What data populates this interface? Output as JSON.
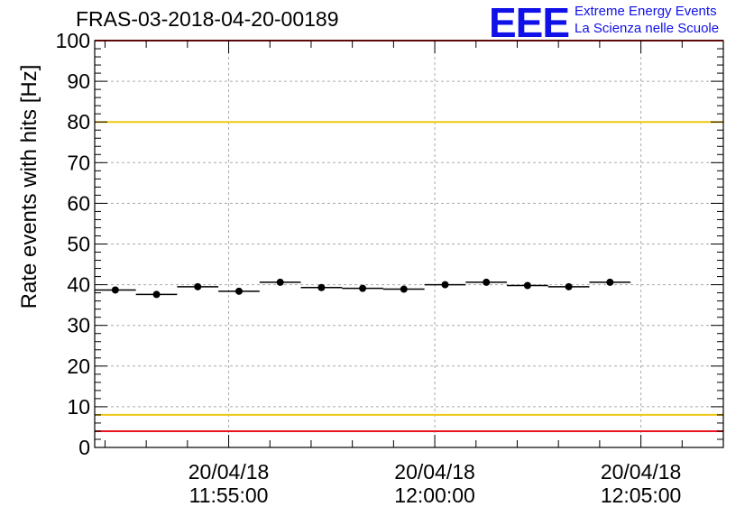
{
  "header": {
    "title": "FRAS-03-2018-04-20-00189",
    "logo_text": "EEE",
    "logo_line1": "Extreme Energy Events",
    "logo_line2": "La Scienza nelle Scuole"
  },
  "colors": {
    "logo": "#1010e8",
    "marker": "#000000",
    "red_line": "#e8141e",
    "yellow_line": "#f0c814",
    "grid": "#aaaaaa"
  },
  "chart_data": {
    "type": "scatter",
    "title": "FRAS-03-2018-04-20-00189",
    "xlabel": "",
    "ylabel": "Rate events with hits [Hz]",
    "ylim": [
      0,
      100
    ],
    "yticks": [
      0,
      10,
      20,
      30,
      40,
      50,
      60,
      70,
      80,
      90,
      100
    ],
    "xlim": [
      "11:51:45",
      "12:07:00"
    ],
    "xticks": [
      {
        "t": "11:55:00",
        "date": "20/04/18",
        "time": "11:55:00"
      },
      {
        "t": "12:00:00",
        "date": "20/04/18",
        "time": "12:00:00"
      },
      {
        "t": "12:05:00",
        "date": "20/04/18",
        "time": "12:05:00"
      }
    ],
    "grid": true,
    "points": [
      {
        "x": "11:52:15",
        "y": 38.7,
        "half_width_s": 30
      },
      {
        "x": "11:53:15",
        "y": 37.6,
        "half_width_s": 30
      },
      {
        "x": "11:54:15",
        "y": 39.5,
        "half_width_s": 30
      },
      {
        "x": "11:55:15",
        "y": 38.4,
        "half_width_s": 30
      },
      {
        "x": "11:56:15",
        "y": 40.6,
        "half_width_s": 30
      },
      {
        "x": "11:57:15",
        "y": 39.3,
        "half_width_s": 30
      },
      {
        "x": "11:58:15",
        "y": 39.1,
        "half_width_s": 30
      },
      {
        "x": "11:59:15",
        "y": 38.9,
        "half_width_s": 30
      },
      {
        "x": "12:00:15",
        "y": 40.0,
        "half_width_s": 30
      },
      {
        "x": "12:01:15",
        "y": 40.6,
        "half_width_s": 30
      },
      {
        "x": "12:02:15",
        "y": 39.8,
        "half_width_s": 30
      },
      {
        "x": "12:03:15",
        "y": 39.5,
        "half_width_s": 30
      },
      {
        "x": "12:04:15",
        "y": 40.6,
        "half_width_s": 30
      }
    ],
    "reference_lines": [
      {
        "y": 100,
        "color": "#e8141e"
      },
      {
        "y": 80,
        "color": "#f0c814"
      },
      {
        "y": 8,
        "color": "#f0c814"
      },
      {
        "y": 4,
        "color": "#e8141e"
      }
    ]
  }
}
